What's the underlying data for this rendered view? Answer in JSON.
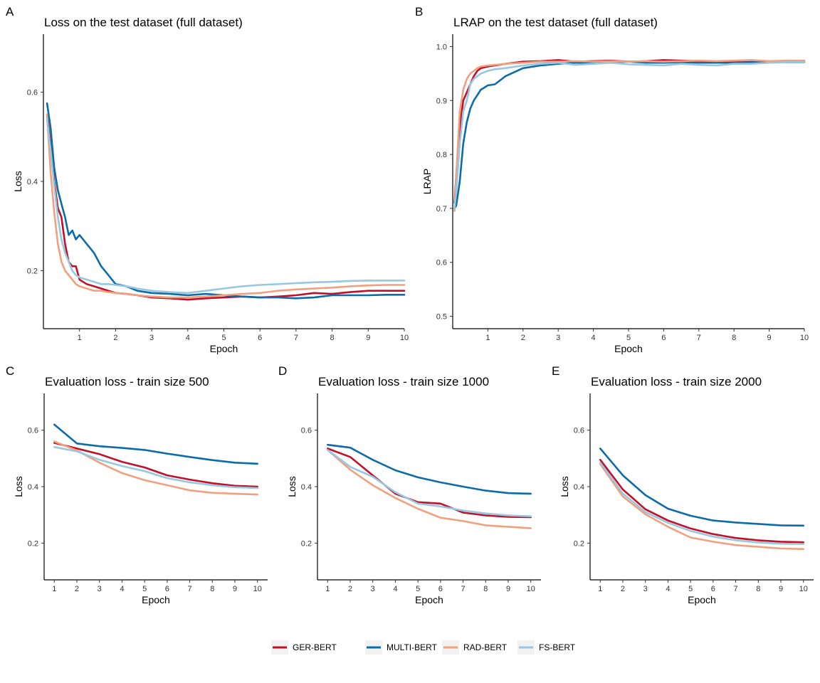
{
  "colors": {
    "GER-BERT": "#c0102a",
    "MULTI-BERT": "#0b6ca8",
    "RAD-BERT": "#f0a07e",
    "FS-BERT": "#98c7e0"
  },
  "legend": {
    "entries": [
      "GER-BERT",
      "MULTI-BERT",
      "RAD-BERT",
      "FS-BERT"
    ],
    "placement": "bottom"
  },
  "chart_data": [
    {
      "panel": "A",
      "type": "line",
      "title": "Loss on the test dataset (full dataset)",
      "xlabel": "Epoch",
      "ylabel": "Loss",
      "xlim": [
        0,
        10
      ],
      "ylim": [
        0.07,
        0.73
      ],
      "xticks": [
        1,
        2,
        3,
        4,
        5,
        6,
        7,
        8,
        9,
        10
      ],
      "yticks": [
        0.2,
        0.4,
        0.6
      ],
      "ytick_labels": [
        "0.2",
        "0.4",
        "0.6"
      ],
      "grid": false,
      "x": [
        0.1,
        0.2,
        0.3,
        0.4,
        0.5,
        0.6,
        0.7,
        0.8,
        0.9,
        1.0,
        1.2,
        1.4,
        1.6,
        1.8,
        2.0,
        2.3,
        2.6,
        3.0,
        3.5,
        4.0,
        4.5,
        5.0,
        5.5,
        6.0,
        6.5,
        7.0,
        7.5,
        8.0,
        8.5,
        9.0,
        9.5,
        10.0
      ],
      "series": [
        {
          "name": "GER-BERT",
          "values": [
            0.55,
            0.48,
            0.4,
            0.34,
            0.32,
            0.26,
            0.22,
            0.21,
            0.21,
            0.18,
            0.17,
            0.165,
            0.16,
            0.155,
            0.15,
            0.148,
            0.145,
            0.14,
            0.138,
            0.135,
            0.138,
            0.14,
            0.142,
            0.14,
            0.142,
            0.145,
            0.15,
            0.148,
            0.152,
            0.155,
            0.155,
            0.155
          ]
        },
        {
          "name": "MULTI-BERT",
          "values": [
            0.575,
            0.52,
            0.43,
            0.38,
            0.35,
            0.32,
            0.28,
            0.29,
            0.27,
            0.28,
            0.26,
            0.24,
            0.21,
            0.19,
            0.17,
            0.165,
            0.155,
            0.15,
            0.148,
            0.145,
            0.148,
            0.145,
            0.142,
            0.14,
            0.14,
            0.138,
            0.14,
            0.145,
            0.145,
            0.145,
            0.146,
            0.146
          ]
        },
        {
          "name": "RAD-BERT",
          "values": [
            0.55,
            0.42,
            0.33,
            0.26,
            0.22,
            0.2,
            0.19,
            0.18,
            0.17,
            0.165,
            0.16,
            0.155,
            0.155,
            0.152,
            0.15,
            0.148,
            0.145,
            0.142,
            0.14,
            0.14,
            0.142,
            0.145,
            0.148,
            0.15,
            0.155,
            0.158,
            0.16,
            0.162,
            0.165,
            0.167,
            0.168,
            0.168
          ]
        },
        {
          "name": "FS-BERT",
          "values": [
            0.54,
            0.47,
            0.39,
            0.32,
            0.27,
            0.24,
            0.22,
            0.2,
            0.19,
            0.185,
            0.18,
            0.175,
            0.17,
            0.17,
            0.168,
            0.165,
            0.16,
            0.155,
            0.152,
            0.15,
            0.155,
            0.16,
            0.165,
            0.168,
            0.17,
            0.172,
            0.174,
            0.175,
            0.177,
            0.178,
            0.178,
            0.178
          ]
        }
      ]
    },
    {
      "panel": "B",
      "type": "line",
      "title": "LRAP on the test dataset (full dataset)",
      "xlabel": "Epoch",
      "ylabel": "LRAP",
      "xlim": [
        0,
        10
      ],
      "ylim": [
        0.477,
        1.023
      ],
      "xticks": [
        1,
        2,
        3,
        4,
        5,
        6,
        7,
        8,
        9,
        10
      ],
      "yticks": [
        0.5,
        0.6,
        0.7,
        0.8,
        0.9,
        1.0
      ],
      "ytick_labels": [
        "0.5",
        "0.6",
        "0.7",
        "0.8",
        "0.9",
        "1.0"
      ],
      "grid": false,
      "x": [
        0.05,
        0.1,
        0.2,
        0.3,
        0.4,
        0.5,
        0.6,
        0.7,
        0.8,
        1.0,
        1.2,
        1.5,
        2.0,
        2.5,
        3.0,
        3.5,
        4.0,
        4.5,
        5.0,
        5.5,
        6.0,
        6.5,
        7.0,
        7.5,
        8.0,
        8.5,
        9.0,
        9.5,
        10.0
      ],
      "series": [
        {
          "name": "GER-BERT",
          "values": [
            0.71,
            0.76,
            0.85,
            0.9,
            0.915,
            0.93,
            0.945,
            0.955,
            0.96,
            0.963,
            0.965,
            0.968,
            0.972,
            0.973,
            0.975,
            0.972,
            0.973,
            0.974,
            0.972,
            0.973,
            0.975,
            0.974,
            0.973,
            0.972,
            0.973,
            0.972,
            0.972,
            0.972,
            0.972
          ]
        },
        {
          "name": "MULTI-BERT",
          "values": [
            0.7,
            0.705,
            0.75,
            0.82,
            0.86,
            0.885,
            0.9,
            0.91,
            0.92,
            0.928,
            0.93,
            0.945,
            0.96,
            0.965,
            0.968,
            0.97,
            0.97,
            0.971,
            0.972,
            0.97,
            0.97,
            0.971,
            0.97,
            0.97,
            0.97,
            0.971,
            0.971,
            0.971,
            0.971
          ]
        },
        {
          "name": "RAD-BERT",
          "values": [
            0.695,
            0.76,
            0.88,
            0.92,
            0.94,
            0.95,
            0.955,
            0.96,
            0.963,
            0.965,
            0.966,
            0.968,
            0.97,
            0.972,
            0.972,
            0.973,
            0.972,
            0.973,
            0.972,
            0.973,
            0.972,
            0.973,
            0.974,
            0.973,
            0.974,
            0.975,
            0.973,
            0.974,
            0.974
          ]
        },
        {
          "name": "FS-BERT",
          "values": [
            0.7,
            0.73,
            0.82,
            0.88,
            0.9,
            0.93,
            0.94,
            0.945,
            0.95,
            0.955,
            0.958,
            0.96,
            0.965,
            0.968,
            0.97,
            0.966,
            0.968,
            0.97,
            0.967,
            0.966,
            0.965,
            0.968,
            0.966,
            0.965,
            0.968,
            0.968,
            0.97,
            0.971,
            0.971
          ]
        }
      ]
    },
    {
      "panel": "C",
      "type": "line",
      "title": "Evaluation loss - train size 500",
      "xlabel": "Epoch",
      "ylabel": "Loss",
      "xlim": [
        0.55,
        10.45
      ],
      "ylim": [
        0.07,
        0.73
      ],
      "xticks": [
        1,
        2,
        3,
        4,
        5,
        6,
        7,
        8,
        9,
        10
      ],
      "yticks": [
        0.2,
        0.4,
        0.6
      ],
      "ytick_labels": [
        "0.2",
        "0.4",
        "0.6"
      ],
      "grid": false,
      "x": [
        1,
        2,
        3,
        4,
        5,
        6,
        7,
        8,
        9,
        10
      ],
      "series": [
        {
          "name": "GER-BERT",
          "values": [
            0.555,
            0.535,
            0.515,
            0.488,
            0.468,
            0.44,
            0.425,
            0.412,
            0.403,
            0.4
          ]
        },
        {
          "name": "MULTI-BERT",
          "values": [
            0.62,
            0.553,
            0.543,
            0.537,
            0.53,
            0.517,
            0.505,
            0.494,
            0.485,
            0.481
          ]
        },
        {
          "name": "RAD-BERT",
          "values": [
            0.56,
            0.528,
            0.485,
            0.448,
            0.423,
            0.405,
            0.387,
            0.378,
            0.375,
            0.372
          ]
        },
        {
          "name": "FS-BERT",
          "values": [
            0.54,
            0.525,
            0.495,
            0.473,
            0.455,
            0.43,
            0.415,
            0.405,
            0.398,
            0.395
          ]
        }
      ]
    },
    {
      "panel": "D",
      "type": "line",
      "title": "Evaluation loss - train size 1000",
      "xlabel": "Epoch",
      "ylabel": "Loss",
      "xlim": [
        0.55,
        10.45
      ],
      "ylim": [
        0.07,
        0.73
      ],
      "xticks": [
        1,
        2,
        3,
        4,
        5,
        6,
        7,
        8,
        9,
        10
      ],
      "yticks": [
        0.2,
        0.4,
        0.6
      ],
      "ytick_labels": [
        "0.2",
        "0.4",
        "0.6"
      ],
      "grid": false,
      "x": [
        1,
        2,
        3,
        4,
        5,
        6,
        7,
        8,
        9,
        10
      ],
      "series": [
        {
          "name": "GER-BERT",
          "values": [
            0.535,
            0.505,
            0.44,
            0.375,
            0.345,
            0.34,
            0.308,
            0.298,
            0.293,
            0.292
          ]
        },
        {
          "name": "MULTI-BERT",
          "values": [
            0.548,
            0.538,
            0.495,
            0.458,
            0.433,
            0.415,
            0.4,
            0.386,
            0.377,
            0.375
          ]
        },
        {
          "name": "RAD-BERT",
          "values": [
            0.53,
            0.46,
            0.405,
            0.36,
            0.322,
            0.29,
            0.278,
            0.263,
            0.258,
            0.253
          ]
        },
        {
          "name": "FS-BERT",
          "values": [
            0.53,
            0.47,
            0.435,
            0.38,
            0.34,
            0.33,
            0.315,
            0.305,
            0.298,
            0.295
          ]
        }
      ]
    },
    {
      "panel": "E",
      "type": "line",
      "title": "Evaluation loss - train size 2000",
      "xlabel": "Epoch",
      "ylabel": "Loss",
      "xlim": [
        0.55,
        10.45
      ],
      "ylim": [
        0.07,
        0.73
      ],
      "xticks": [
        1,
        2,
        3,
        4,
        5,
        6,
        7,
        8,
        9,
        10
      ],
      "yticks": [
        0.2,
        0.4,
        0.6
      ],
      "ytick_labels": [
        "0.2",
        "0.4",
        "0.6"
      ],
      "grid": false,
      "x": [
        1,
        2,
        3,
        4,
        5,
        6,
        7,
        8,
        9,
        10
      ],
      "series": [
        {
          "name": "GER-BERT",
          "values": [
            0.495,
            0.39,
            0.32,
            0.28,
            0.252,
            0.232,
            0.218,
            0.21,
            0.205,
            0.203
          ]
        },
        {
          "name": "MULTI-BERT",
          "values": [
            0.535,
            0.44,
            0.37,
            0.322,
            0.297,
            0.28,
            0.273,
            0.268,
            0.263,
            0.262
          ]
        },
        {
          "name": "RAD-BERT",
          "values": [
            0.48,
            0.365,
            0.302,
            0.258,
            0.22,
            0.205,
            0.193,
            0.187,
            0.181,
            0.179
          ]
        },
        {
          "name": "FS-BERT",
          "values": [
            0.485,
            0.375,
            0.31,
            0.272,
            0.243,
            0.223,
            0.21,
            0.202,
            0.198,
            0.197
          ]
        }
      ]
    }
  ]
}
